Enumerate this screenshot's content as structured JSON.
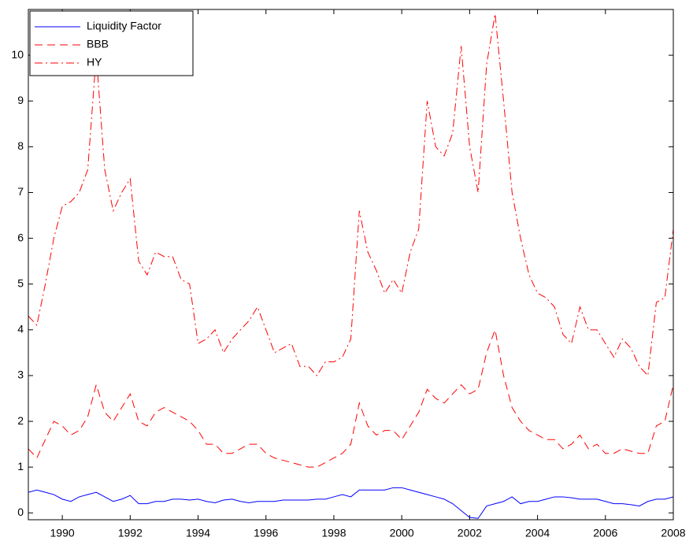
{
  "chart_data": {
    "type": "line",
    "x": [
      1989,
      1989.25,
      1989.5,
      1989.75,
      1990,
      1990.25,
      1990.5,
      1990.75,
      1991,
      1991.25,
      1991.5,
      1991.75,
      1992,
      1992.25,
      1992.5,
      1992.75,
      1993,
      1993.25,
      1993.5,
      1993.75,
      1994,
      1994.25,
      1994.5,
      1994.75,
      1995,
      1995.25,
      1995.5,
      1995.75,
      1996,
      1996.25,
      1996.5,
      1996.75,
      1997,
      1997.25,
      1997.5,
      1997.75,
      1998,
      1998.25,
      1998.5,
      1998.75,
      1999,
      1999.25,
      1999.5,
      1999.75,
      2000,
      2000.25,
      2000.5,
      2000.75,
      2001,
      2001.25,
      2001.5,
      2001.75,
      2002,
      2002.25,
      2002.5,
      2002.75,
      2003,
      2003.25,
      2003.5,
      2003.75,
      2004,
      2004.25,
      2004.5,
      2004.75,
      2005,
      2005.25,
      2005.5,
      2005.75,
      2006,
      2006.25,
      2006.5,
      2006.75,
      2007,
      2007.25,
      2007.5,
      2007.75,
      2008
    ],
    "series": [
      {
        "name": "Liquidity Factor",
        "color": "#0000ff",
        "linestyle": "solid",
        "values": [
          0.45,
          0.5,
          0.45,
          0.4,
          0.3,
          0.25,
          0.35,
          0.4,
          0.45,
          0.35,
          0.25,
          0.3,
          0.38,
          0.2,
          0.2,
          0.25,
          0.25,
          0.3,
          0.3,
          0.28,
          0.3,
          0.25,
          0.22,
          0.28,
          0.3,
          0.25,
          0.22,
          0.25,
          0.25,
          0.25,
          0.28,
          0.28,
          0.28,
          0.28,
          0.3,
          0.3,
          0.35,
          0.4,
          0.35,
          0.5,
          0.5,
          0.5,
          0.5,
          0.55,
          0.55,
          0.5,
          0.45,
          0.4,
          0.35,
          0.3,
          0.2,
          0.05,
          -0.1,
          -0.12,
          0.15,
          0.2,
          0.25,
          0.35,
          0.2,
          0.25,
          0.25,
          0.3,
          0.35,
          0.35,
          0.33,
          0.3,
          0.3,
          0.3,
          0.25,
          0.2,
          0.2,
          0.18,
          0.15,
          0.25,
          0.3,
          0.3,
          0.35
        ]
      },
      {
        "name": "BBB",
        "color": "#ff0000",
        "linestyle": "dashed",
        "values": [
          1.4,
          1.2,
          1.6,
          2.0,
          1.9,
          1.7,
          1.8,
          2.1,
          2.8,
          2.2,
          2.0,
          2.3,
          2.6,
          2.0,
          1.9,
          2.2,
          2.3,
          2.2,
          2.1,
          2.0,
          1.8,
          1.5,
          1.5,
          1.3,
          1.3,
          1.4,
          1.5,
          1.5,
          1.3,
          1.2,
          1.15,
          1.1,
          1.05,
          1.0,
          1.0,
          1.1,
          1.2,
          1.3,
          1.5,
          2.4,
          1.9,
          1.7,
          1.8,
          1.8,
          1.6,
          1.9,
          2.2,
          2.7,
          2.5,
          2.4,
          2.6,
          2.8,
          2.6,
          2.7,
          3.5,
          4.0,
          3.0,
          2.3,
          2.0,
          1.8,
          1.7,
          1.6,
          1.6,
          1.4,
          1.5,
          1.7,
          1.4,
          1.5,
          1.3,
          1.3,
          1.4,
          1.35,
          1.3,
          1.3,
          1.9,
          2.0,
          2.8
        ]
      },
      {
        "name": "HY",
        "color": "#ff0000",
        "linestyle": "dashdot",
        "values": [
          4.3,
          4.1,
          5.0,
          6.0,
          6.7,
          6.8,
          7.0,
          7.5,
          10.0,
          7.5,
          6.6,
          7.0,
          7.3,
          5.5,
          5.2,
          5.7,
          5.6,
          5.6,
          5.1,
          5.0,
          3.7,
          3.8,
          4.0,
          3.5,
          3.8,
          4.0,
          4.2,
          4.5,
          4.0,
          3.5,
          3.6,
          3.7,
          3.2,
          3.2,
          3.0,
          3.3,
          3.3,
          3.4,
          3.8,
          6.6,
          5.7,
          5.3,
          4.8,
          5.1,
          4.8,
          5.7,
          6.2,
          9.0,
          8.0,
          7.8,
          8.3,
          10.2,
          8.0,
          7.0,
          9.8,
          10.9,
          9.0,
          7.0,
          6.0,
          5.2,
          4.8,
          4.7,
          4.5,
          3.9,
          3.7,
          4.5,
          4.0,
          4.0,
          3.7,
          3.4,
          3.8,
          3.6,
          3.2,
          3.0,
          4.6,
          4.7,
          6.2
        ]
      }
    ],
    "xlim": [
      1989,
      2008
    ],
    "xticks": [
      1990,
      1992,
      1994,
      1996,
      1998,
      2000,
      2002,
      2004,
      2006,
      2008
    ],
    "ylim": [
      -0.15,
      11
    ],
    "yticks": [
      0,
      1,
      2,
      3,
      4,
      5,
      6,
      7,
      8,
      9,
      10
    ],
    "legend": "upper left",
    "grid": false
  }
}
